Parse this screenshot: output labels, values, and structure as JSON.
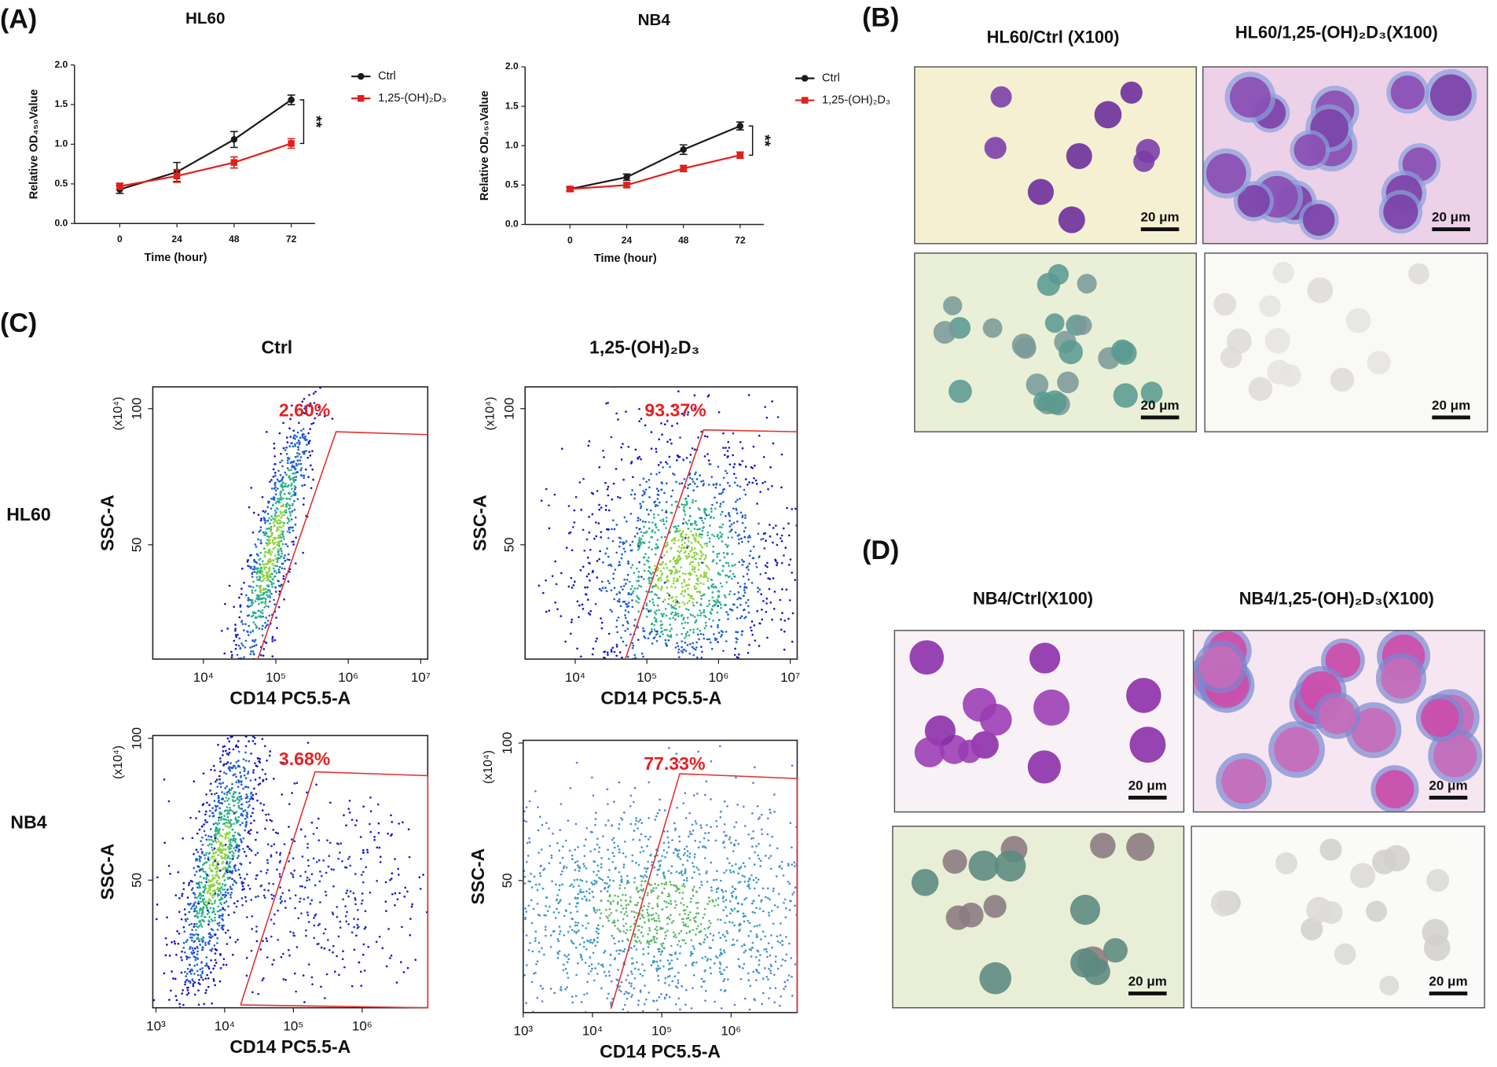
{
  "panel_labels": [
    "(A)",
    "(B)",
    "(C)",
    "(D)"
  ],
  "chart_data": [
    {
      "type": "line",
      "title": "HL60",
      "xlabel": "Time (hour)",
      "ylabel": "Relative OD₄₅₀Value",
      "x": [
        0,
        24,
        48,
        72
      ],
      "xlim": [
        -19,
        82
      ],
      "xticks": [
        0,
        24,
        48,
        72
      ],
      "ylim": [
        0,
        2
      ],
      "yticks": [
        {
          "value": 0,
          "label": "0.0"
        },
        0.5,
        {
          "value": 1,
          "label": "1.0"
        },
        1.5,
        {
          "value": 2,
          "label": "2.0"
        }
      ],
      "annotation": "**",
      "series": [
        {
          "name": "Ctrl",
          "color": "#1a1a1a",
          "marker": "circle",
          "values": [
            0.43,
            0.65,
            1.06,
            1.56
          ],
          "errors": [
            0.05,
            0.12,
            0.1,
            0.06
          ]
        },
        {
          "name": "1,25-(OH)₂D₃",
          "color": "#e0201b",
          "marker": "square",
          "values": [
            0.47,
            0.6,
            0.77,
            1.01
          ],
          "errors": [
            0.04,
            0.08,
            0.07,
            0.06
          ]
        }
      ]
    },
    {
      "type": "line",
      "title": "NB4",
      "xlabel": "Time (hour)",
      "ylabel": "Relative OD₄₅₀Value",
      "x": [
        0,
        24,
        48,
        72
      ],
      "xlim": [
        -19,
        82
      ],
      "xticks": [
        0,
        24,
        48,
        72
      ],
      "ylim": [
        0,
        2
      ],
      "yticks": [
        {
          "value": 0,
          "label": "0.0"
        },
        0.5,
        {
          "value": 1,
          "label": "1.0"
        },
        1.5,
        {
          "value": 2,
          "label": "2.0"
        }
      ],
      "annotation": "**",
      "series": [
        {
          "name": "Ctrl",
          "color": "#1a1a1a",
          "marker": "circle",
          "values": [
            0.45,
            0.6,
            0.95,
            1.25
          ],
          "errors": [
            0.03,
            0.04,
            0.06,
            0.05
          ]
        },
        {
          "name": "1,25-(OH)₂D₃",
          "color": "#e0201b",
          "marker": "square",
          "values": [
            0.45,
            0.5,
            0.71,
            0.88
          ],
          "errors": [
            0.02,
            0.03,
            0.04,
            0.04
          ]
        }
      ]
    },
    {
      "type": "flow",
      "annotation": "2.60%",
      "xlabel": "CD14 PC5.5-A",
      "ylabel": "SSC-A",
      "yunit": "(x10⁴)",
      "xscale": "log",
      "xlim": [
        2000,
        12500000
      ],
      "xticks": [
        {
          "value": 10000,
          "label": "10⁴"
        },
        {
          "value": 100000,
          "label": "10⁵"
        },
        {
          "value": 1000000,
          "label": "10⁶"
        },
        {
          "value": 10000000,
          "label": "10⁷"
        }
      ],
      "ylim": [
        8,
        108
      ],
      "yticks": [
        50,
        100
      ]
    },
    {
      "type": "flow",
      "annotation": "93.37%",
      "xlabel": "CD14 PC5.5-A",
      "ylabel": "SSC-A",
      "yunit": "(x10⁴)",
      "xscale": "log",
      "xlim": [
        2000,
        12500000
      ],
      "xticks": [
        {
          "value": 10000,
          "label": "10⁴"
        },
        {
          "value": 100000,
          "label": "10⁵"
        },
        {
          "value": 1000000,
          "label": "10⁶"
        },
        {
          "value": 10000000,
          "label": "10⁷"
        }
      ],
      "ylim": [
        8,
        108
      ],
      "yticks": [
        50,
        100
      ]
    },
    {
      "type": "flow",
      "annotation": "3.68%",
      "xlabel": "CD14 PC5.5-A",
      "ylabel": "SSC-A",
      "yunit": "(x10⁴)",
      "xscale": "log",
      "xlim": [
        900,
        9000000
      ],
      "xticks": [
        {
          "value": 1000,
          "label": "10³"
        },
        {
          "value": 10000,
          "label": "10⁴"
        },
        {
          "value": 100000,
          "label": "10⁵"
        },
        {
          "value": 1000000,
          "label": "10⁶"
        }
      ],
      "ylim": [
        5,
        101
      ],
      "yticks": [
        50,
        100
      ]
    },
    {
      "type": "flow",
      "annotation": "77.33%",
      "xlabel": "CD14 PC5.5-A",
      "ylabel": "SSC-A",
      "yunit": "(x10⁴)",
      "xscale": "log",
      "xlim": [
        1000,
        9000000
      ],
      "xticks": [
        {
          "value": 1000,
          "label": "10³"
        },
        {
          "value": 10000,
          "label": "10⁴"
        },
        {
          "value": 100000,
          "label": "10⁵"
        },
        {
          "value": 1000000,
          "label": "10⁶"
        }
      ],
      "ylim": [
        2,
        101
      ],
      "yticks": [
        50,
        100
      ]
    }
  ],
  "flow_grid": {
    "col_titles": [
      "Ctrl",
      "1,25-(OH)₂D₃"
    ],
    "row_labels": [
      "HL60",
      "NB4"
    ]
  },
  "micro_panels": [
    {
      "titles": [
        "HL60/Ctrl (X100)",
        "HL60/1,25-(OH)₂D₃(X100)"
      ],
      "scale_labels": [
        "20 μm",
        "20 μm",
        "20 μm",
        "20 μm"
      ]
    },
    {
      "titles": [
        "NB4/Ctrl(X100)",
        "NB4/1,25-(OH)₂D₃(X100)"
      ],
      "scale_labels": [
        "20 μm",
        "20 μm",
        "20 μm",
        "20 μm"
      ]
    }
  ]
}
